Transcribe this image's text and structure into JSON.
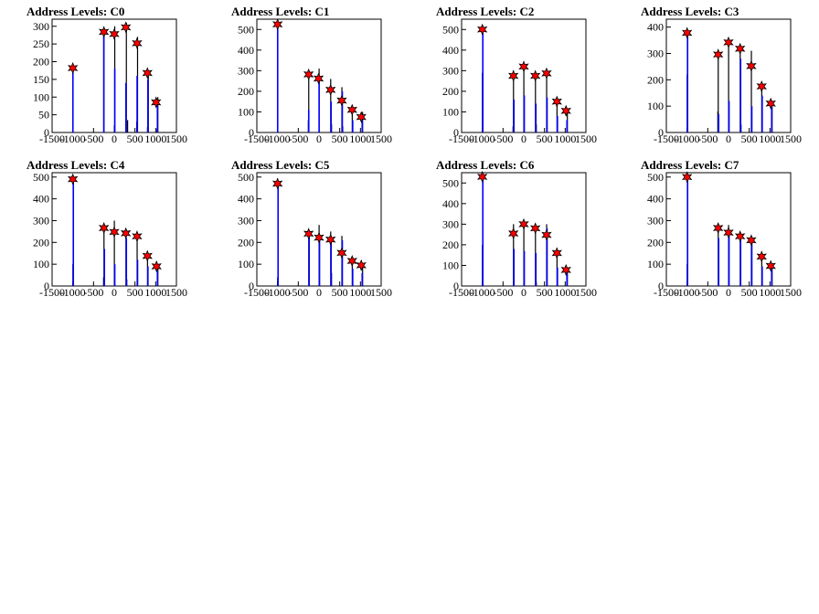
{
  "chart_data": [
    {
      "type": "bar",
      "title": "Address Levels: C0",
      "xlim": [
        -1500,
        1500
      ],
      "ylim": [
        0,
        320
      ],
      "xticks": [
        -1500,
        -1000,
        -500,
        0,
        500,
        1000,
        1500
      ],
      "yticks": [
        0,
        50,
        100,
        150,
        200,
        250,
        300
      ],
      "bars_black": [
        {
          "x": -1000,
          "y": 25
        },
        {
          "x": -250,
          "y": 290
        },
        {
          "x": 0,
          "y": 20
        },
        {
          "x": 10,
          "y": 300
        },
        {
          "x": 290,
          "y": 310
        },
        {
          "x": 320,
          "y": 35
        },
        {
          "x": 540,
          "y": 30
        },
        {
          "x": 560,
          "y": 270
        },
        {
          "x": 800,
          "y": 15
        },
        {
          "x": 820,
          "y": 160
        },
        {
          "x": 1030,
          "y": 10
        },
        {
          "x": 1050,
          "y": 100
        }
      ],
      "bars_blue": [
        {
          "x": -1000,
          "y": 180
        },
        {
          "x": -255,
          "y": 280
        },
        {
          "x": 10,
          "y": 180
        },
        {
          "x": 280,
          "y": 140
        },
        {
          "x": 550,
          "y": 160
        },
        {
          "x": 810,
          "y": 150
        },
        {
          "x": 1040,
          "y": 80
        }
      ],
      "peaks": [
        {
          "x": -1000,
          "y": 182
        },
        {
          "x": -250,
          "y": 284
        },
        {
          "x": 0,
          "y": 278
        },
        {
          "x": 280,
          "y": 297
        },
        {
          "x": 550,
          "y": 252
        },
        {
          "x": 800,
          "y": 168
        },
        {
          "x": 1010,
          "y": 85
        }
      ]
    },
    {
      "type": "bar",
      "title": "Address Levels: C1",
      "xlim": [
        -1500,
        1500
      ],
      "ylim": [
        0,
        550
      ],
      "xticks": [
        -1500,
        -1000,
        -500,
        0,
        500,
        1000,
        1500
      ],
      "yticks": [
        0,
        100,
        200,
        300,
        400,
        500
      ],
      "bars_black": [
        {
          "x": -1000,
          "y": 40
        },
        {
          "x": -250,
          "y": 300
        },
        {
          "x": -260,
          "y": 60
        },
        {
          "x": 0,
          "y": 310
        },
        {
          "x": 280,
          "y": 260
        },
        {
          "x": 300,
          "y": 40
        },
        {
          "x": 550,
          "y": 220
        },
        {
          "x": 570,
          "y": 30
        },
        {
          "x": 800,
          "y": 130
        },
        {
          "x": 1050,
          "y": 100
        }
      ],
      "bars_blue": [
        {
          "x": -1000,
          "y": 530
        },
        {
          "x": -250,
          "y": 110
        },
        {
          "x": 0,
          "y": 260
        },
        {
          "x": 290,
          "y": 150
        },
        {
          "x": 560,
          "y": 200
        },
        {
          "x": 810,
          "y": 60
        },
        {
          "x": 1040,
          "y": 70
        }
      ],
      "peaks": [
        {
          "x": -1000,
          "y": 525
        },
        {
          "x": -250,
          "y": 282
        },
        {
          "x": -10,
          "y": 262
        },
        {
          "x": 280,
          "y": 207
        },
        {
          "x": 550,
          "y": 155
        },
        {
          "x": 800,
          "y": 110
        },
        {
          "x": 1020,
          "y": 75
        }
      ]
    },
    {
      "type": "bar",
      "title": "Address Levels: C2",
      "xlim": [
        -1500,
        1500
      ],
      "ylim": [
        0,
        550
      ],
      "xticks": [
        -1500,
        -1000,
        -500,
        0,
        500,
        1000,
        1500
      ],
      "yticks": [
        0,
        100,
        200,
        300,
        400,
        500
      ],
      "bars_black": [
        {
          "x": -1000,
          "y": 290
        },
        {
          "x": -250,
          "y": 300
        },
        {
          "x": -260,
          "y": 30
        },
        {
          "x": 0,
          "y": 330
        },
        {
          "x": 280,
          "y": 280
        },
        {
          "x": 300,
          "y": 40
        },
        {
          "x": 550,
          "y": 290
        },
        {
          "x": 800,
          "y": 150
        },
        {
          "x": 1050,
          "y": 100
        }
      ],
      "bars_blue": [
        {
          "x": -990,
          "y": 500
        },
        {
          "x": -240,
          "y": 160
        },
        {
          "x": 10,
          "y": 180
        },
        {
          "x": 290,
          "y": 140
        },
        {
          "x": 560,
          "y": 170
        },
        {
          "x": 810,
          "y": 80
        },
        {
          "x": 1040,
          "y": 60
        }
      ],
      "peaks": [
        {
          "x": -1000,
          "y": 500
        },
        {
          "x": -250,
          "y": 275
        },
        {
          "x": 0,
          "y": 320
        },
        {
          "x": 280,
          "y": 275
        },
        {
          "x": 550,
          "y": 287
        },
        {
          "x": 800,
          "y": 150
        },
        {
          "x": 1020,
          "y": 105
        }
      ]
    },
    {
      "type": "bar",
      "title": "Address Levels: C3",
      "xlim": [
        -1500,
        1500
      ],
      "ylim": [
        0,
        430
      ],
      "xticks": [
        -1500,
        -1000,
        -500,
        0,
        500,
        1000,
        1500
      ],
      "yticks": [
        0,
        100,
        200,
        300,
        400
      ],
      "bars_black": [
        {
          "x": -1000,
          "y": 220
        },
        {
          "x": -250,
          "y": 310
        },
        {
          "x": -260,
          "y": 80
        },
        {
          "x": 0,
          "y": 350
        },
        {
          "x": 280,
          "y": 320
        },
        {
          "x": 300,
          "y": 30
        },
        {
          "x": 550,
          "y": 310
        },
        {
          "x": 800,
          "y": 180
        },
        {
          "x": 1050,
          "y": 120
        }
      ],
      "bars_blue": [
        {
          "x": -990,
          "y": 380
        },
        {
          "x": -240,
          "y": 70
        },
        {
          "x": 10,
          "y": 120
        },
        {
          "x": 290,
          "y": 280
        },
        {
          "x": 560,
          "y": 100
        },
        {
          "x": 810,
          "y": 140
        },
        {
          "x": 1040,
          "y": 100
        }
      ],
      "peaks": [
        {
          "x": -1000,
          "y": 378
        },
        {
          "x": -250,
          "y": 296
        },
        {
          "x": 0,
          "y": 342
        },
        {
          "x": 280,
          "y": 318
        },
        {
          "x": 550,
          "y": 252
        },
        {
          "x": 800,
          "y": 175
        },
        {
          "x": 1020,
          "y": 110
        }
      ]
    },
    {
      "type": "bar",
      "title": "Address Levels: C4",
      "xlim": [
        -1500,
        1500
      ],
      "ylim": [
        0,
        520
      ],
      "xticks": [
        -1500,
        -1000,
        -500,
        0,
        500,
        1000,
        1500
      ],
      "yticks": [
        0,
        100,
        200,
        300,
        400,
        500
      ],
      "bars_black": [
        {
          "x": -1000,
          "y": 100
        },
        {
          "x": -250,
          "y": 280
        },
        {
          "x": -260,
          "y": 40
        },
        {
          "x": 0,
          "y": 300
        },
        {
          "x": 280,
          "y": 250
        },
        {
          "x": 300,
          "y": 30
        },
        {
          "x": 550,
          "y": 240
        },
        {
          "x": 800,
          "y": 140
        },
        {
          "x": 1050,
          "y": 90
        }
      ],
      "bars_blue": [
        {
          "x": -990,
          "y": 490
        },
        {
          "x": -240,
          "y": 170
        },
        {
          "x": 10,
          "y": 100
        },
        {
          "x": 290,
          "y": 220
        },
        {
          "x": 560,
          "y": 120
        },
        {
          "x": 810,
          "y": 90
        },
        {
          "x": 1040,
          "y": 70
        }
      ],
      "peaks": [
        {
          "x": -1000,
          "y": 490
        },
        {
          "x": -250,
          "y": 266
        },
        {
          "x": 0,
          "y": 248
        },
        {
          "x": 280,
          "y": 242
        },
        {
          "x": 550,
          "y": 228
        },
        {
          "x": 800,
          "y": 138
        },
        {
          "x": 1020,
          "y": 90
        }
      ]
    },
    {
      "type": "bar",
      "title": "Address Levels: C5",
      "xlim": [
        -1500,
        1500
      ],
      "ylim": [
        0,
        520
      ],
      "xticks": [
        -1500,
        -1000,
        -500,
        0,
        500,
        1000,
        1500
      ],
      "yticks": [
        0,
        100,
        200,
        300,
        400,
        500
      ],
      "bars_black": [
        {
          "x": -1000,
          "y": 40
        },
        {
          "x": -250,
          "y": 260
        },
        {
          "x": 0,
          "y": 280
        },
        {
          "x": 280,
          "y": 250
        },
        {
          "x": 300,
          "y": 60
        },
        {
          "x": 550,
          "y": 230
        },
        {
          "x": 800,
          "y": 120
        },
        {
          "x": 1050,
          "y": 90
        }
      ],
      "bars_blue": [
        {
          "x": -990,
          "y": 470
        },
        {
          "x": -240,
          "y": 230
        },
        {
          "x": 10,
          "y": 230
        },
        {
          "x": 290,
          "y": 200
        },
        {
          "x": 560,
          "y": 210
        },
        {
          "x": 810,
          "y": 80
        },
        {
          "x": 1040,
          "y": 60
        }
      ],
      "peaks": [
        {
          "x": -1000,
          "y": 470
        },
        {
          "x": -250,
          "y": 240
        },
        {
          "x": 0,
          "y": 222
        },
        {
          "x": 280,
          "y": 213
        },
        {
          "x": 550,
          "y": 152
        },
        {
          "x": 800,
          "y": 115
        },
        {
          "x": 1020,
          "y": 95
        }
      ]
    },
    {
      "type": "bar",
      "title": "Address Levels: C6",
      "xlim": [
        -1500,
        1500
      ],
      "ylim": [
        0,
        550
      ],
      "xticks": [
        -1500,
        -1000,
        -500,
        0,
        500,
        1000,
        1500
      ],
      "yticks": [
        0,
        100,
        200,
        300,
        400,
        500
      ],
      "bars_black": [
        {
          "x": -1000,
          "y": 200
        },
        {
          "x": -250,
          "y": 300
        },
        {
          "x": 0,
          "y": 310
        },
        {
          "x": 280,
          "y": 290
        },
        {
          "x": 300,
          "y": 20
        },
        {
          "x": 550,
          "y": 300
        },
        {
          "x": 800,
          "y": 160
        },
        {
          "x": 1050,
          "y": 90
        }
      ],
      "bars_blue": [
        {
          "x": -990,
          "y": 530
        },
        {
          "x": -240,
          "y": 180
        },
        {
          "x": 10,
          "y": 170
        },
        {
          "x": 290,
          "y": 160
        },
        {
          "x": 560,
          "y": 280
        },
        {
          "x": 810,
          "y": 90
        },
        {
          "x": 1040,
          "y": 70
        }
      ],
      "peaks": [
        {
          "x": -1000,
          "y": 530
        },
        {
          "x": -250,
          "y": 255
        },
        {
          "x": 0,
          "y": 300
        },
        {
          "x": 280,
          "y": 280
        },
        {
          "x": 550,
          "y": 248
        },
        {
          "x": 800,
          "y": 160
        },
        {
          "x": 1020,
          "y": 78
        }
      ]
    },
    {
      "type": "bar",
      "title": "Address Levels: C7",
      "xlim": [
        -1500,
        1500
      ],
      "ylim": [
        0,
        520
      ],
      "xticks": [
        -1500,
        -1000,
        -500,
        0,
        500,
        1000,
        1500
      ],
      "yticks": [
        0,
        100,
        200,
        300,
        400,
        500
      ],
      "bars_black": [
        {
          "x": -1000,
          "y": 100
        },
        {
          "x": -250,
          "y": 280
        },
        {
          "x": 0,
          "y": 280
        },
        {
          "x": 280,
          "y": 240
        },
        {
          "x": 550,
          "y": 230
        },
        {
          "x": 800,
          "y": 140
        },
        {
          "x": 1050,
          "y": 100
        }
      ],
      "bars_blue": [
        {
          "x": -990,
          "y": 500
        },
        {
          "x": -240,
          "y": 220
        },
        {
          "x": 10,
          "y": 230
        },
        {
          "x": 290,
          "y": 220
        },
        {
          "x": 560,
          "y": 200
        },
        {
          "x": 810,
          "y": 90
        },
        {
          "x": 1040,
          "y": 80
        }
      ],
      "peaks": [
        {
          "x": -1000,
          "y": 500
        },
        {
          "x": -250,
          "y": 266
        },
        {
          "x": 0,
          "y": 245
        },
        {
          "x": 280,
          "y": 228
        },
        {
          "x": 550,
          "y": 210
        },
        {
          "x": 800,
          "y": 135
        },
        {
          "x": 1020,
          "y": 92
        }
      ]
    }
  ]
}
